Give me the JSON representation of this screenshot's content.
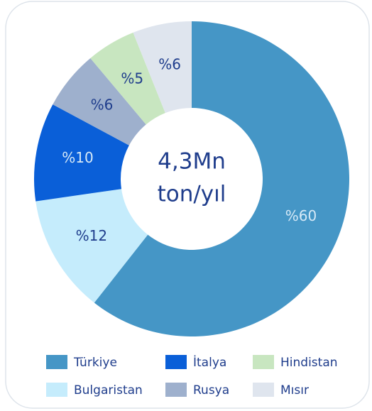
{
  "chart_data": {
    "type": "donut",
    "center_text": [
      "4,3Mn",
      "ton/yıl"
    ],
    "categories": [
      "Türkiye",
      "Bulgaristan",
      "İtalya",
      "Rusya",
      "Hindistan",
      "Mısır"
    ],
    "values": [
      60,
      12,
      10,
      6,
      5,
      6
    ],
    "value_labels": [
      "%60",
      "%12",
      "%10",
      "%6",
      "%5",
      "%6"
    ],
    "colors": [
      "#4596c6",
      "#c5ecfc",
      "#0a5fd8",
      "#9eb0cd",
      "#c8e6c0",
      "#dfe5ee"
    ],
    "legend": "bottom"
  }
}
